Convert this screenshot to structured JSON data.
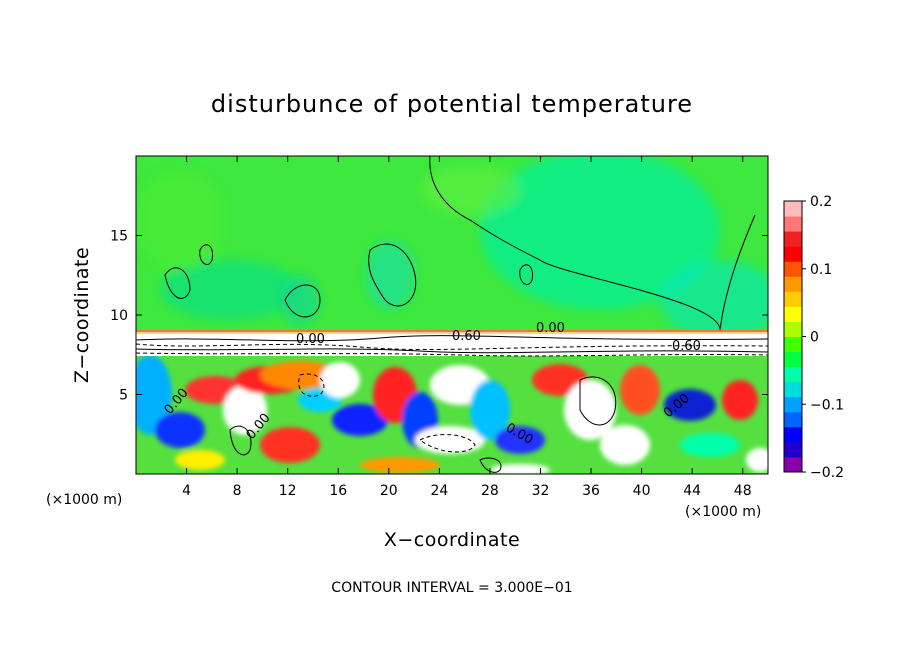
{
  "chart_data": {
    "type": "heatmap",
    "title": "disturbunce of potential temperature",
    "xlabel": "X−coordinate",
    "ylabel": "Z−coordinate",
    "x_unit_left": "(×1000 m)",
    "x_unit_right": "(×1000 m)",
    "xlim": [
      0,
      50
    ],
    "ylim": [
      0,
      20
    ],
    "x_ticks": [
      4,
      8,
      12,
      16,
      20,
      24,
      28,
      32,
      36,
      40,
      44,
      48
    ],
    "x_tick_labels": [
      "4",
      "8",
      "12",
      "16",
      "20",
      "24",
      "28",
      "32",
      "36",
      "40",
      "44",
      "48"
    ],
    "y_ticks": [
      5,
      10,
      15
    ],
    "y_tick_labels": [
      "5",
      "10",
      "15"
    ],
    "colorbar": {
      "min": -0.2,
      "max": 0.2,
      "ticks": [
        0.2,
        0.1,
        0,
        -0.1,
        -0.2
      ],
      "tick_labels": [
        "0.2",
        "0.1",
        "0",
        "−0.1",
        "−0.2"
      ],
      "colors": [
        "#8800aa",
        "#2200cc",
        "#0000ff",
        "#0066ff",
        "#00a0ff",
        "#00dddd",
        "#00ffaa",
        "#00ff44",
        "#44ff00",
        "#aaff00",
        "#ffff00",
        "#ffcc00",
        "#ff9900",
        "#ff5500",
        "#ff0000",
        "#ee2222",
        "#ff7777",
        "#ffbbbb"
      ]
    },
    "contour_labels": [
      "0.60",
      "0.00",
      "0.60",
      "0.00",
      "0.00",
      "0.00",
      "0.00",
      "0.00"
    ],
    "contour_interval_text": "CONTOUR INTERVAL = 3.000E−01"
  }
}
